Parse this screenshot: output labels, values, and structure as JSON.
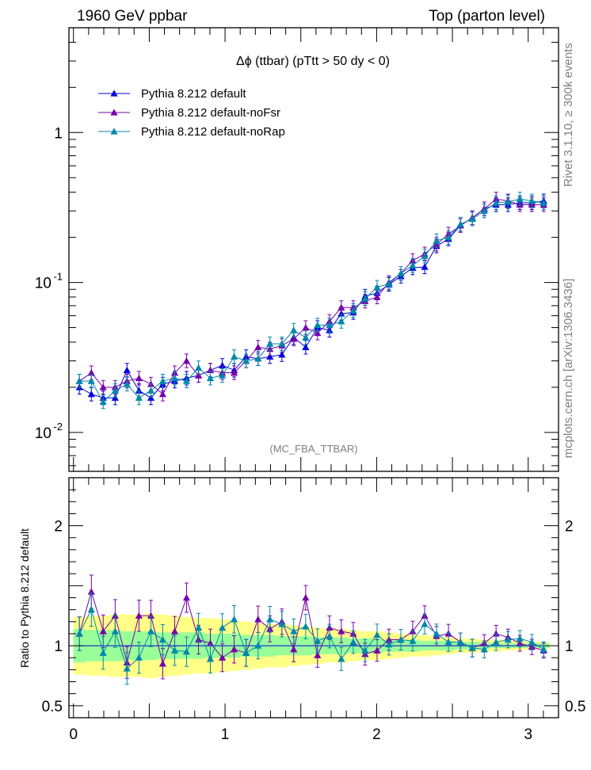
{
  "header": {
    "left": "1960 GeV ppbar",
    "right": "Top (parton level)"
  },
  "side": {
    "rivet": "Rivet 3.1.10, ≥ 300k events",
    "mcplots": "mcplots.cern.ch [arXiv:1306.3436]"
  },
  "colors": {
    "default": "#0000dd",
    "noFsr": "#7700aa",
    "noRap": "#0088aa",
    "band_inner": "#99ff99",
    "band_outer": "#ffff88"
  },
  "chart_data": {
    "type": "line",
    "title": "Δϕ (ttbar) (pTtt > 50 dy < 0)",
    "watermark": "(MC_FBA_TTBAR)",
    "xlabel": "",
    "ylabel": "",
    "xlim": [
      -0.03,
      3.2
    ],
    "ylim": [
      0.0055,
      5.0
    ],
    "yscale": "log",
    "legend_position": "top-left",
    "x": [
      0.039,
      0.118,
      0.196,
      0.275,
      0.353,
      0.432,
      0.511,
      0.589,
      0.668,
      0.746,
      0.825,
      0.903,
      0.982,
      1.06,
      1.139,
      1.218,
      1.296,
      1.375,
      1.453,
      1.532,
      1.61,
      1.689,
      1.767,
      1.846,
      1.924,
      2.003,
      2.081,
      2.16,
      2.238,
      2.317,
      2.395,
      2.474,
      2.553,
      2.631,
      2.71,
      2.788,
      2.867,
      2.945,
      3.024,
      3.102
    ],
    "series": [
      {
        "name": "Pythia 8.212 default",
        "color": "#0000dd",
        "values": [
          0.02,
          0.018,
          0.017,
          0.017,
          0.026,
          0.019,
          0.017,
          0.021,
          0.022,
          0.023,
          0.024,
          0.026,
          0.028,
          0.026,
          0.032,
          0.031,
          0.032,
          0.033,
          0.043,
          0.037,
          0.05,
          0.048,
          0.062,
          0.063,
          0.081,
          0.085,
          0.097,
          0.11,
          0.125,
          0.127,
          0.175,
          0.195,
          0.24,
          0.27,
          0.31,
          0.33,
          0.33,
          0.34,
          0.34,
          0.35
        ]
      },
      {
        "name": "Pythia 8.212 default-noFsr",
        "color": "#7700aa",
        "values": [
          0.022,
          0.025,
          0.02,
          0.02,
          0.022,
          0.023,
          0.021,
          0.018,
          0.025,
          0.03,
          0.024,
          0.026,
          0.025,
          0.025,
          0.03,
          0.037,
          0.036,
          0.038,
          0.042,
          0.05,
          0.046,
          0.055,
          0.068,
          0.068,
          0.075,
          0.08,
          0.1,
          0.115,
          0.14,
          0.155,
          0.18,
          0.21,
          0.24,
          0.27,
          0.31,
          0.36,
          0.35,
          0.33,
          0.33,
          0.33
        ]
      },
      {
        "name": "Pythia 8.212 default-noRap",
        "color": "#0088aa",
        "values": [
          0.022,
          0.022,
          0.016,
          0.019,
          0.021,
          0.017,
          0.019,
          0.022,
          0.023,
          0.022,
          0.027,
          0.023,
          0.024,
          0.032,
          0.03,
          0.031,
          0.039,
          0.039,
          0.048,
          0.043,
          0.052,
          0.052,
          0.055,
          0.065,
          0.078,
          0.093,
          0.098,
          0.115,
          0.13,
          0.15,
          0.19,
          0.2,
          0.245,
          0.265,
          0.3,
          0.34,
          0.345,
          0.36,
          0.35,
          0.34
        ]
      }
    ],
    "ratio": {
      "ylabel": "Ratio to Pythia 8.212 default",
      "ylim": [
        0.4,
        2.4
      ],
      "yticks": [
        0.5,
        1,
        2
      ],
      "xticks": [
        0,
        1,
        2,
        3
      ],
      "band_inner": {
        "lower": [
          0.86,
          0.87,
          0.87,
          0.87,
          0.88,
          0.88,
          0.88,
          0.89,
          0.89,
          0.89,
          0.89,
          0.9,
          0.9,
          0.9,
          0.91,
          0.91,
          0.91,
          0.92,
          0.92,
          0.92,
          0.93,
          0.93,
          0.93,
          0.94,
          0.94,
          0.94,
          0.95,
          0.95,
          0.95,
          0.96,
          0.96,
          0.96,
          0.97,
          0.97,
          0.97,
          0.98,
          0.98,
          0.98,
          0.98,
          0.98
        ],
        "upper": [
          1.14,
          1.13,
          1.13,
          1.13,
          1.12,
          1.12,
          1.12,
          1.11,
          1.11,
          1.11,
          1.11,
          1.1,
          1.1,
          1.1,
          1.09,
          1.09,
          1.09,
          1.08,
          1.08,
          1.08,
          1.07,
          1.07,
          1.07,
          1.06,
          1.06,
          1.06,
          1.05,
          1.05,
          1.05,
          1.04,
          1.04,
          1.04,
          1.03,
          1.03,
          1.03,
          1.02,
          1.02,
          1.02,
          1.02,
          1.02
        ]
      },
      "band_outer": {
        "lower": [
          0.76,
          0.75,
          0.75,
          0.74,
          0.74,
          0.74,
          0.73,
          0.74,
          0.75,
          0.76,
          0.77,
          0.77,
          0.78,
          0.79,
          0.8,
          0.81,
          0.82,
          0.82,
          0.83,
          0.84,
          0.85,
          0.86,
          0.86,
          0.87,
          0.88,
          0.88,
          0.89,
          0.9,
          0.91,
          0.91,
          0.92,
          0.93,
          0.94,
          0.94,
          0.95,
          0.95,
          0.96,
          0.96,
          0.97,
          0.97
        ],
        "upper": [
          1.24,
          1.25,
          1.25,
          1.26,
          1.26,
          1.26,
          1.27,
          1.26,
          1.25,
          1.24,
          1.23,
          1.23,
          1.22,
          1.21,
          1.2,
          1.19,
          1.18,
          1.18,
          1.17,
          1.16,
          1.15,
          1.14,
          1.14,
          1.13,
          1.12,
          1.12,
          1.11,
          1.1,
          1.09,
          1.09,
          1.08,
          1.07,
          1.06,
          1.06,
          1.05,
          1.05,
          1.04,
          1.04,
          1.03,
          1.03
        ]
      },
      "series": [
        {
          "name": "Pythia 8.212 default",
          "color": "#0000dd",
          "values": [
            1.0,
            1.0,
            1.0,
            1.0,
            1.0,
            1.0,
            1.0,
            1.0,
            1.0,
            1.0,
            1.0,
            1.0,
            1.0,
            1.0,
            1.0,
            1.0,
            1.0,
            1.0,
            1.0,
            1.0,
            1.0,
            1.0,
            1.0,
            1.0,
            1.0,
            1.0,
            1.0,
            1.0,
            1.0,
            1.0,
            1.0,
            1.0,
            1.0,
            1.0,
            1.0,
            1.0,
            1.0,
            1.0,
            1.0,
            1.0
          ]
        },
        {
          "name": "Pythia 8.212 default-noFsr",
          "color": "#7700aa",
          "values": [
            1.1,
            1.45,
            1.12,
            1.25,
            0.86,
            1.25,
            1.25,
            0.85,
            1.12,
            1.4,
            1.05,
            1.02,
            0.9,
            0.97,
            0.94,
            1.22,
            1.14,
            1.2,
            0.97,
            1.4,
            0.92,
            1.15,
            1.12,
            1.1,
            0.93,
            0.96,
            1.05,
            1.05,
            1.12,
            1.25,
            1.08,
            1.1,
            1.03,
            0.98,
            1.02,
            1.1,
            1.07,
            1.02,
            0.99,
            0.96
          ]
        },
        {
          "name": "Pythia 8.212 default-noRap",
          "color": "#0088aa",
          "values": [
            1.1,
            1.3,
            0.94,
            1.12,
            0.81,
            0.9,
            1.12,
            1.05,
            0.96,
            0.95,
            1.15,
            0.89,
            1.15,
            1.22,
            0.94,
            1.0,
            1.22,
            1.18,
            1.12,
            1.16,
            1.04,
            1.08,
            0.89,
            1.03,
            0.96,
            1.09,
            1.01,
            1.05,
            1.04,
            1.18,
            1.1,
            1.03,
            1.03,
            0.98,
            0.97,
            1.03,
            1.05,
            1.06,
            1.03,
            0.97
          ]
        }
      ]
    }
  }
}
